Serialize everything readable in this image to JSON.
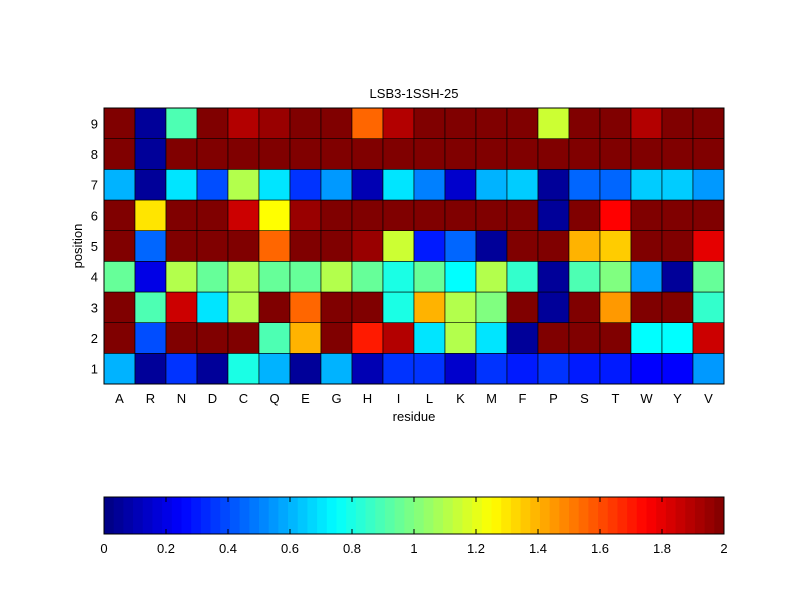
{
  "chart_data": {
    "type": "heatmap",
    "title": "LSB3-1SSH-25",
    "xlabel": "residue",
    "ylabel": "position",
    "x_categories": [
      "A",
      "R",
      "N",
      "D",
      "C",
      "Q",
      "E",
      "G",
      "H",
      "I",
      "L",
      "K",
      "M",
      "F",
      "P",
      "S",
      "T",
      "W",
      "Y",
      "V"
    ],
    "y_categories": [
      "1",
      "2",
      "3",
      "4",
      "5",
      "6",
      "7",
      "8",
      "9"
    ],
    "values_by_position": [
      [
        0.6,
        0.05,
        0.35,
        0.05,
        0.8,
        0.6,
        0.05,
        0.6,
        0.1,
        0.35,
        0.35,
        0.15,
        0.35,
        0.3,
        0.35,
        0.3,
        0.3,
        0.25,
        0.25,
        0.55
      ],
      [
        2.0,
        0.4,
        2.0,
        2.0,
        2.0,
        0.9,
        1.4,
        2.0,
        1.7,
        1.9,
        0.7,
        1.1,
        0.7,
        0.05,
        2.0,
        2.0,
        2.0,
        0.75,
        0.75,
        1.85
      ],
      [
        2.0,
        0.9,
        1.85,
        0.7,
        1.1,
        2.0,
        1.55,
        2.0,
        2.0,
        0.8,
        1.4,
        1.1,
        1.0,
        2.0,
        0.05,
        2.0,
        1.45,
        2.0,
        2.0,
        0.85
      ],
      [
        0.95,
        0.2,
        1.1,
        0.95,
        1.1,
        0.95,
        0.95,
        1.1,
        0.95,
        0.8,
        0.95,
        0.75,
        1.1,
        0.85,
        0.05,
        0.9,
        1.0,
        0.55,
        0.05,
        0.95
      ],
      [
        2.0,
        0.45,
        2.0,
        2.0,
        2.0,
        1.55,
        2.0,
        2.0,
        1.95,
        1.15,
        0.3,
        0.45,
        0.05,
        2.0,
        2.0,
        1.4,
        1.35,
        2.0,
        2.0,
        1.8
      ],
      [
        2.0,
        1.3,
        2.0,
        2.0,
        1.85,
        1.25,
        1.95,
        2.0,
        2.0,
        2.0,
        2.0,
        2.0,
        2.0,
        2.0,
        0.05,
        2.0,
        1.75,
        2.0,
        2.0,
        2.0
      ],
      [
        0.6,
        0.05,
        0.7,
        0.4,
        1.1,
        0.7,
        0.35,
        0.55,
        0.1,
        0.7,
        0.5,
        0.15,
        0.6,
        0.65,
        0.05,
        0.45,
        0.45,
        0.65,
        0.65,
        0.55
      ],
      [
        2.0,
        0.05,
        2.0,
        2.0,
        2.0,
        2.0,
        2.0,
        2.0,
        2.0,
        2.0,
        2.0,
        2.0,
        2.0,
        2.0,
        2.0,
        2.0,
        2.0,
        2.0,
        2.0,
        2.0
      ],
      [
        2.0,
        0.05,
        0.9,
        2.0,
        1.9,
        1.95,
        2.0,
        2.0,
        1.55,
        1.9,
        2.0,
        2.0,
        2.0,
        2.0,
        1.15,
        2.0,
        2.0,
        1.9,
        2.0,
        2.0
      ]
    ],
    "color_range": [
      0,
      2
    ],
    "colormap": "jet",
    "colorbar": {
      "ticks": [
        0,
        0.2,
        0.4,
        0.6,
        0.8,
        1,
        1.2,
        1.4,
        1.6,
        1.8,
        2
      ],
      "tick_labels": [
        "0",
        "0.2",
        "0.4",
        "0.6",
        "0.8",
        "1",
        "1.2",
        "1.4",
        "1.6",
        "1.8",
        "2"
      ],
      "orientation": "horizontal",
      "placement": "bottom"
    },
    "grid": false
  }
}
